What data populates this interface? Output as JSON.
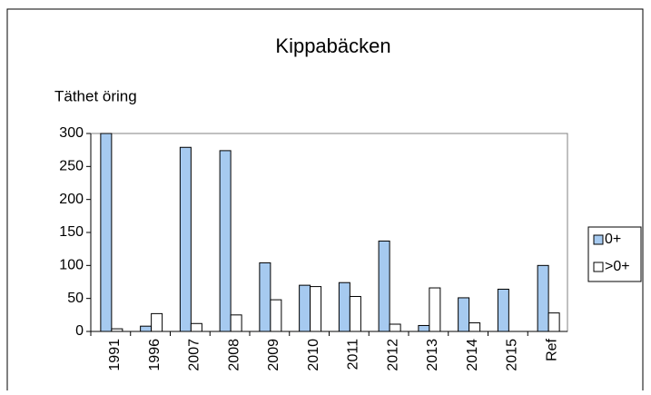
{
  "chart_data": {
    "type": "bar",
    "title": "Kippabäcken",
    "y_label": "Täthet öring",
    "categories": [
      "1991",
      "1996",
      "2007",
      "2008",
      "2009",
      "2010",
      "2011",
      "2012",
      "2013",
      "2014",
      "2015",
      "Ref"
    ],
    "series": [
      {
        "name": "0+",
        "color": "#a6caf0",
        "values": [
          300,
          8,
          279,
          274,
          104,
          70,
          74,
          137,
          9,
          51,
          64,
          100
        ]
      },
      {
        "name": ">0+",
        "color": "#ffffff",
        "values": [
          4,
          27,
          12,
          25,
          48,
          68,
          53,
          11,
          66,
          13,
          null,
          28
        ]
      }
    ],
    "ylim": [
      0,
      300
    ],
    "yticks": [
      0,
      50,
      100,
      150,
      200,
      250,
      300
    ],
    "grid": false,
    "legend": "right"
  }
}
